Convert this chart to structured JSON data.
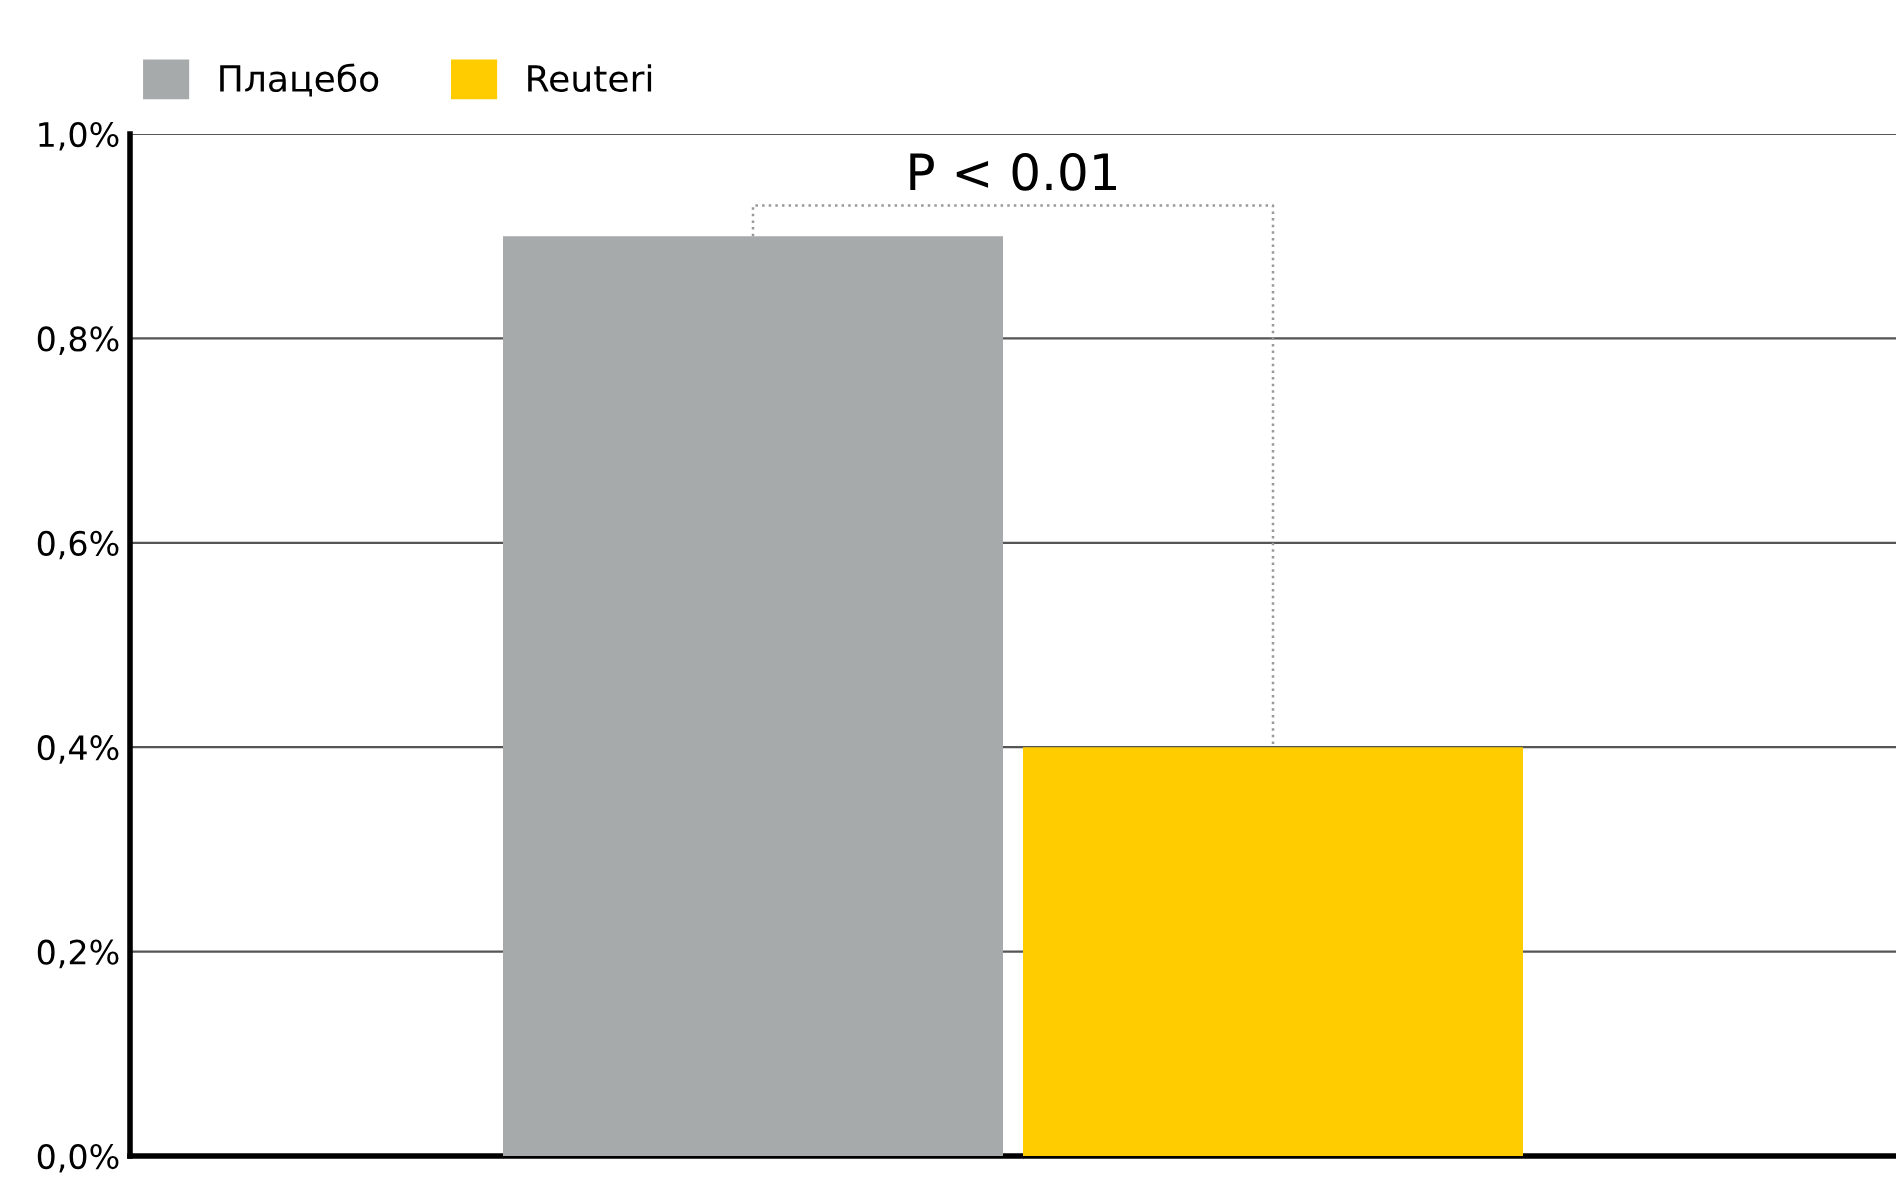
{
  "chart_data": {
    "type": "bar",
    "categories": [
      null
    ],
    "series": [
      {
        "name": "Плацебо",
        "color": "#a7aaaa",
        "values": [
          0.9
        ]
      },
      {
        "name": "Reuteri",
        "color": "#ffcc00",
        "values": [
          0.4
        ]
      }
    ],
    "ylim": [
      0,
      1.0
    ],
    "yticks": [
      {
        "value": 0,
        "label": "0,0%"
      },
      {
        "value": 0.2,
        "label": "0,2%"
      },
      {
        "value": 0.4,
        "label": "0,4%"
      },
      {
        "value": 0.6,
        "label": "0,6%"
      },
      {
        "value": 0.8,
        "label": "0,8%"
      },
      {
        "value": 1.0,
        "label": "1,0%"
      }
    ],
    "grid": "y",
    "legend": "top left",
    "annotations": [
      "P < 0.01"
    ]
  }
}
